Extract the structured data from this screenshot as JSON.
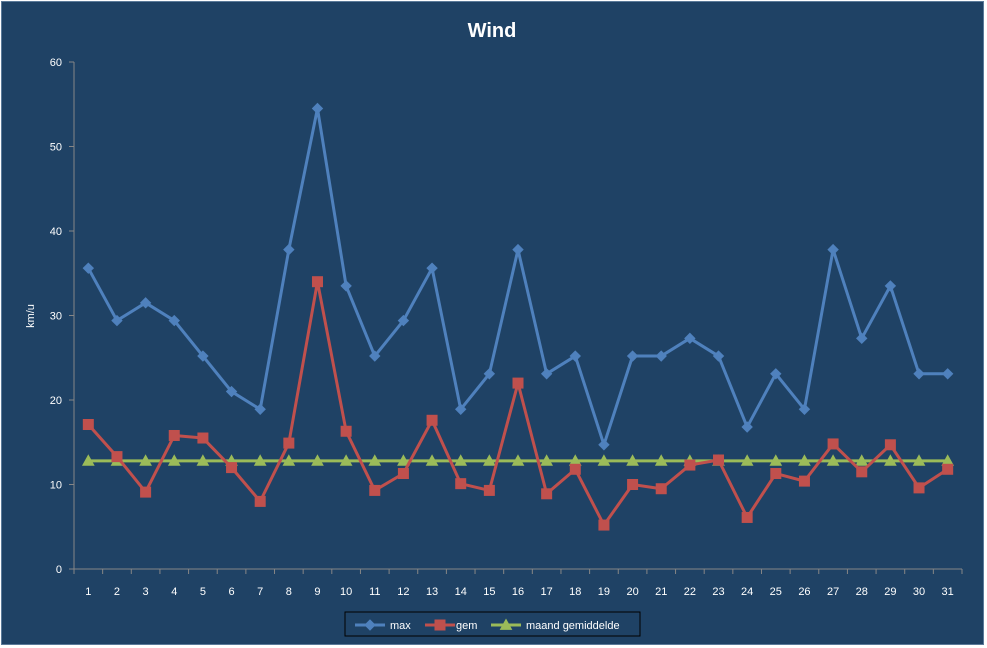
{
  "chart_data": {
    "type": "line",
    "title": "Wind",
    "xlabel": "",
    "ylabel": "km/u",
    "ylim": [
      0,
      60
    ],
    "yticks": [
      0,
      10,
      20,
      30,
      40,
      50,
      60
    ],
    "x": [
      1,
      2,
      3,
      4,
      5,
      6,
      7,
      8,
      9,
      10,
      11,
      12,
      13,
      14,
      15,
      16,
      17,
      18,
      19,
      20,
      21,
      22,
      23,
      24,
      25,
      26,
      27,
      28,
      29,
      30,
      31
    ],
    "grid": false,
    "legend_position": "bottom",
    "series": [
      {
        "name": "max",
        "color": "#4f81bd",
        "marker": "diamond",
        "values": [
          35.6,
          29.4,
          31.5,
          29.4,
          25.2,
          21.0,
          18.9,
          37.8,
          54.5,
          33.5,
          25.2,
          29.4,
          35.6,
          18.9,
          23.1,
          37.8,
          23.1,
          25.2,
          14.7,
          25.2,
          25.2,
          27.3,
          25.2,
          16.8,
          23.1,
          18.9,
          37.8,
          27.3,
          33.5,
          23.1,
          23.1
        ]
      },
      {
        "name": "gem",
        "color": "#c0504d",
        "marker": "square",
        "values": [
          17.1,
          13.3,
          9.1,
          15.8,
          15.5,
          12.0,
          8.0,
          14.9,
          34.0,
          16.3,
          9.3,
          11.3,
          17.6,
          10.1,
          9.3,
          22.0,
          8.9,
          11.8,
          5.2,
          10.0,
          9.5,
          12.3,
          12.9,
          6.1,
          11.3,
          10.4,
          14.8,
          11.5,
          14.7,
          9.6,
          11.8
        ]
      },
      {
        "name": "maand gemiddelde",
        "color": "#9bbb59",
        "marker": "triangle",
        "values": [
          12.8,
          12.8,
          12.8,
          12.8,
          12.8,
          12.8,
          12.8,
          12.8,
          12.8,
          12.8,
          12.8,
          12.8,
          12.8,
          12.8,
          12.8,
          12.8,
          12.8,
          12.8,
          12.8,
          12.8,
          12.8,
          12.8,
          12.8,
          12.8,
          12.8,
          12.8,
          12.8,
          12.8,
          12.8,
          12.8,
          12.8
        ]
      }
    ]
  }
}
